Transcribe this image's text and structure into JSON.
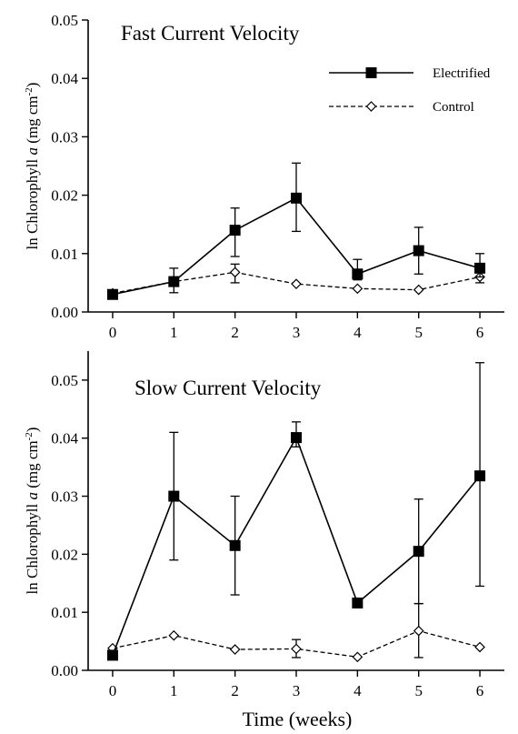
{
  "chart_data": [
    {
      "type": "line",
      "title": "Fast Current Velocity",
      "ylabel": "ln Chlorophyll a (mg cm-2)",
      "xlabel": "",
      "x": [
        0,
        1,
        2,
        3,
        4,
        5,
        6
      ],
      "xlim": [
        -0.4,
        6.4
      ],
      "ylim": [
        0,
        0.05
      ],
      "yticks": [
        "0.00",
        "0.01",
        "0.02",
        "0.03",
        "0.04",
        "0.05"
      ],
      "xticks": [
        "0",
        "1",
        "2",
        "3",
        "4",
        "5",
        "6"
      ],
      "legend": {
        "placement": "top-right"
      },
      "series": [
        {
          "name": "Electrified",
          "style": "solid-filled-square",
          "values": [
            0.003,
            0.0052,
            0.014,
            0.0195,
            0.0065,
            0.0105,
            0.0075
          ],
          "err_low": [
            0.0028,
            0.0033,
            0.0095,
            0.0138,
            0.0055,
            0.0065,
            0.006
          ],
          "err_high": [
            0.0035,
            0.0075,
            0.0178,
            0.0255,
            0.009,
            0.0145,
            0.01
          ]
        },
        {
          "name": "Control",
          "style": "dashed-open-diamond",
          "values": [
            0.0032,
            0.0052,
            0.0068,
            0.0048,
            0.004,
            0.0038,
            0.006
          ],
          "err_low": [
            0.0032,
            0.0045,
            0.005,
            0.0048,
            0.004,
            0.0038,
            0.005
          ],
          "err_high": [
            0.0032,
            0.006,
            0.0082,
            0.0048,
            0.004,
            0.0038,
            0.0068
          ]
        }
      ]
    },
    {
      "type": "line",
      "title": "Slow Current Velocity",
      "ylabel": "ln Chlorophyll a (mg cm-2)",
      "xlabel": "Time (weeks)",
      "x": [
        0,
        1,
        2,
        3,
        4,
        5,
        6
      ],
      "xlim": [
        -0.4,
        6.4
      ],
      "ylim": [
        0,
        0.055
      ],
      "yticks": [
        "0.00",
        "0.01",
        "0.02",
        "0.03",
        "0.04",
        "0.05"
      ],
      "xticks": [
        "0",
        "1",
        "2",
        "3",
        "4",
        "5",
        "6"
      ],
      "series": [
        {
          "name": "Electrified",
          "style": "solid-filled-square",
          "values": [
            0.0026,
            0.03,
            0.0215,
            0.0401,
            0.0116,
            0.0205,
            0.0335
          ],
          "err_low": [
            0.0026,
            0.019,
            0.013,
            0.0385,
            0.0116,
            0.0115,
            0.0145
          ],
          "err_high": [
            0.0026,
            0.041,
            0.03,
            0.0428,
            0.0116,
            0.0295,
            0.053
          ]
        },
        {
          "name": "Control",
          "style": "dashed-open-diamond",
          "values": [
            0.0038,
            0.006,
            0.0036,
            0.0037,
            0.0023,
            0.0068,
            0.004
          ],
          "err_low": [
            0.0038,
            0.006,
            0.0036,
            0.0022,
            0.0023,
            0.0022,
            0.004
          ],
          "err_high": [
            0.0038,
            0.006,
            0.0036,
            0.0053,
            0.0023,
            0.0115,
            0.004
          ]
        }
      ]
    }
  ]
}
